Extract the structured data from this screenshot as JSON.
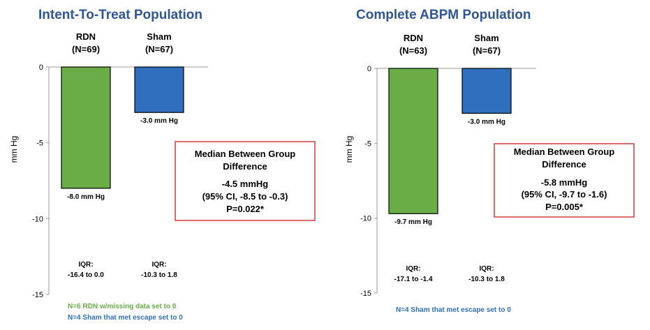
{
  "colors": {
    "title": "#2e5597",
    "rdn": "#6aac46",
    "sham": "#2f6fbd",
    "box_border": "#d43a3a",
    "axis": "#999999"
  },
  "chart_data": [
    {
      "type": "bar",
      "title": "Intent-To-Treat Population",
      "ylabel": "mm Hg",
      "ylim": [
        -15,
        0
      ],
      "yticks": [
        0,
        -5,
        -10,
        -15
      ],
      "categories": [
        "RDN",
        "Sham"
      ],
      "category_n": [
        "(N=69)",
        "(N=67)"
      ],
      "values": [
        -8.0,
        -3.0
      ],
      "value_labels": [
        "-8.0 mm Hg",
        "-3.0 mm Hg"
      ],
      "iqr_heading": [
        "IQR:",
        "IQR:"
      ],
      "iqr_values": [
        "-16.4 to 0.0",
        "-10.3 to 1.8"
      ],
      "annotation": [
        "Median Between Group",
        "Difference",
        "-4.5 mmHg",
        "(95% CI, -8.5 to -0.3)",
        "P=0.022*"
      ],
      "footnotes": [
        {
          "text": "N=6 RDN w/missing data set to 0",
          "color": "rdn"
        },
        {
          "text": "N=4 Sham that met escape set to 0",
          "color": "sham"
        }
      ]
    },
    {
      "type": "bar",
      "title": "Complete ABPM Population",
      "ylabel": "mm Hg",
      "ylim": [
        -15,
        0
      ],
      "yticks": [
        0,
        -5,
        -10,
        -15
      ],
      "categories": [
        "RDN",
        "Sham"
      ],
      "category_n": [
        "(N=63)",
        "(N=67)"
      ],
      "values": [
        -9.7,
        -3.0
      ],
      "value_labels": [
        "-9.7 mm Hg",
        "-3.0 mm Hg"
      ],
      "iqr_heading": [
        "IQR:",
        "IQR:"
      ],
      "iqr_values": [
        "-17.1 to -1.4",
        "-10.3 to 1.8"
      ],
      "annotation": [
        "Median Between Group",
        "Difference",
        "-5.8 mmHg",
        "(95% CI, -9.7 to -1.6)",
        "P=0.005*"
      ],
      "footnotes": [
        {
          "text": "N=4 Sham that met escape set to 0",
          "color": "sham"
        }
      ]
    }
  ]
}
